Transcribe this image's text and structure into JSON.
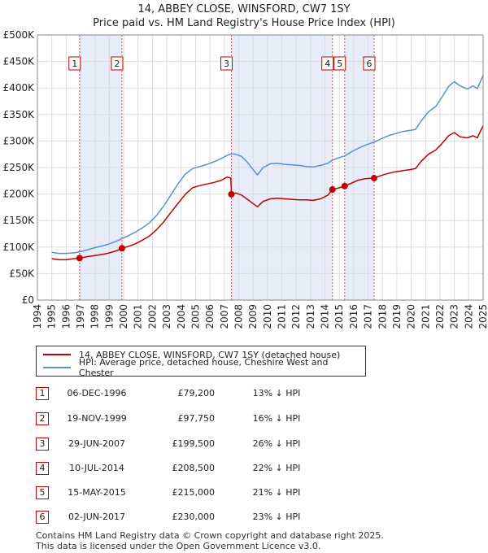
{
  "title_line1": "14, ABBEY CLOSE, WINSFORD, CW7 1SY",
  "title_line2": "Price paid vs. HM Land Registry's House Price Index (HPI)",
  "legend": {
    "property": "14, ABBEY CLOSE, WINSFORD, CW7 1SY (detached house)",
    "hpi": "HPI: Average price, detached house, Cheshire West and Chester"
  },
  "colors": {
    "property": "#c00000",
    "hpi": "#5b8fd0",
    "shade": "#e6ecf8",
    "grid": "#dddddd"
  },
  "sales": [
    {
      "n": "1",
      "date": "06-DEC-1996",
      "price": "£79,200",
      "hpi": "13% ↓ HPI"
    },
    {
      "n": "2",
      "date": "19-NOV-1999",
      "price": "£97,750",
      "hpi": "16% ↓ HPI"
    },
    {
      "n": "3",
      "date": "29-JUN-2007",
      "price": "£199,500",
      "hpi": "26% ↓ HPI"
    },
    {
      "n": "4",
      "date": "10-JUL-2014",
      "price": "£208,500",
      "hpi": "22% ↓ HPI"
    },
    {
      "n": "5",
      "date": "15-MAY-2015",
      "price": "£215,000",
      "hpi": "21% ↓ HPI"
    },
    {
      "n": "6",
      "date": "02-JUN-2017",
      "price": "£230,000",
      "hpi": "23% ↓ HPI"
    }
  ],
  "footer_line1": "Contains HM Land Registry data © Crown copyright and database right 2025.",
  "footer_line2": "This data is licensed under the Open Government Licence v3.0.",
  "chart_data": {
    "type": "line",
    "x_range": [
      1994,
      2025
    ],
    "y_range": [
      0,
      500000
    ],
    "y_ticks": [
      {
        "v": 0,
        "label": "£0"
      },
      {
        "v": 50000,
        "label": "£50K"
      },
      {
        "v": 100000,
        "label": "£100K"
      },
      {
        "v": 150000,
        "label": "£150K"
      },
      {
        "v": 200000,
        "label": "£200K"
      },
      {
        "v": 250000,
        "label": "£250K"
      },
      {
        "v": 300000,
        "label": "£300K"
      },
      {
        "v": 350000,
        "label": "£350K"
      },
      {
        "v": 400000,
        "label": "£400K"
      },
      {
        "v": 450000,
        "label": "£450K"
      },
      {
        "v": 500000,
        "label": "£500K"
      }
    ],
    "x_ticks": [
      "1994",
      "1995",
      "1996",
      "1997",
      "1998",
      "1999",
      "2000",
      "2001",
      "2002",
      "2003",
      "2004",
      "2005",
      "2006",
      "2007",
      "2008",
      "2009",
      "2010",
      "2011",
      "2012",
      "2013",
      "2014",
      "2015",
      "2016",
      "2017",
      "2018",
      "2019",
      "2020",
      "2021",
      "2022",
      "2023",
      "2024",
      "2025"
    ],
    "shaded_ranges": [
      [
        1996.93,
        1999.88
      ],
      [
        2007.49,
        2014.52
      ],
      [
        2015.37,
        2017.42
      ]
    ],
    "sale_points": [
      {
        "n": "1",
        "x": 1996.93,
        "y": 79200
      },
      {
        "n": "2",
        "x": 1999.88,
        "y": 97750
      },
      {
        "n": "3",
        "x": 2007.49,
        "y": 199500
      },
      {
        "n": "4",
        "x": 2014.52,
        "y": 208500
      },
      {
        "n": "5",
        "x": 2015.37,
        "y": 215000
      },
      {
        "n": "6",
        "x": 2017.42,
        "y": 230000
      }
    ],
    "series": [
      {
        "name": "14, ABBEY CLOSE, WINSFORD, CW7 1SY (detached house)",
        "points": [
          [
            1995.0,
            78000
          ],
          [
            1995.5,
            76000
          ],
          [
            1996.0,
            76000
          ],
          [
            1996.5,
            78000
          ],
          [
            1996.93,
            79200
          ],
          [
            1997.5,
            82000
          ],
          [
            1998.0,
            84000
          ],
          [
            1998.5,
            86000
          ],
          [
            1999.0,
            89000
          ],
          [
            1999.5,
            93000
          ],
          [
            1999.88,
            97750
          ],
          [
            2000.3,
            101000
          ],
          [
            2000.8,
            106000
          ],
          [
            2001.3,
            113000
          ],
          [
            2001.8,
            121000
          ],
          [
            2002.3,
            133000
          ],
          [
            2002.8,
            148000
          ],
          [
            2003.3,
            166000
          ],
          [
            2003.8,
            183000
          ],
          [
            2004.3,
            200000
          ],
          [
            2004.8,
            212000
          ],
          [
            2005.3,
            216000
          ],
          [
            2005.8,
            219000
          ],
          [
            2006.3,
            222000
          ],
          [
            2006.8,
            226000
          ],
          [
            2007.2,
            232000
          ],
          [
            2007.45,
            230000
          ],
          [
            2007.49,
            199500
          ],
          [
            2007.8,
            202000
          ],
          [
            2008.2,
            198000
          ],
          [
            2008.6,
            190000
          ],
          [
            2009.0,
            182000
          ],
          [
            2009.3,
            176000
          ],
          [
            2009.7,
            186000
          ],
          [
            2010.2,
            191000
          ],
          [
            2010.7,
            192000
          ],
          [
            2011.2,
            191000
          ],
          [
            2011.7,
            190000
          ],
          [
            2012.2,
            189000
          ],
          [
            2012.7,
            189000
          ],
          [
            2013.2,
            188000
          ],
          [
            2013.7,
            191000
          ],
          [
            2014.2,
            198000
          ],
          [
            2014.52,
            208500
          ],
          [
            2014.9,
            211000
          ],
          [
            2015.37,
            215000
          ],
          [
            2015.8,
            220000
          ],
          [
            2016.3,
            226000
          ],
          [
            2016.8,
            229000
          ],
          [
            2017.42,
            230000
          ],
          [
            2017.9,
            235000
          ],
          [
            2018.4,
            239000
          ],
          [
            2018.9,
            242000
          ],
          [
            2019.4,
            244000
          ],
          [
            2019.9,
            246000
          ],
          [
            2020.3,
            248000
          ],
          [
            2020.7,
            262000
          ],
          [
            2021.2,
            275000
          ],
          [
            2021.7,
            283000
          ],
          [
            2022.1,
            294000
          ],
          [
            2022.6,
            310000
          ],
          [
            2023.0,
            316000
          ],
          [
            2023.4,
            308000
          ],
          [
            2023.9,
            306000
          ],
          [
            2024.3,
            310000
          ],
          [
            2024.6,
            306000
          ],
          [
            2025.0,
            329000
          ]
        ]
      },
      {
        "name": "HPI: Average price, detached house, Cheshire West and Chester",
        "points": [
          [
            1995.0,
            90000
          ],
          [
            1995.5,
            88000
          ],
          [
            1996.0,
            88000
          ],
          [
            1996.5,
            89000
          ],
          [
            1996.93,
            91000
          ],
          [
            1997.5,
            95000
          ],
          [
            1998.0,
            99000
          ],
          [
            1998.5,
            102000
          ],
          [
            1999.0,
            106000
          ],
          [
            1999.5,
            111000
          ],
          [
            1999.88,
            116000
          ],
          [
            2000.3,
            121000
          ],
          [
            2000.8,
            128000
          ],
          [
            2001.3,
            136000
          ],
          [
            2001.8,
            146000
          ],
          [
            2002.3,
            160000
          ],
          [
            2002.8,
            178000
          ],
          [
            2003.3,
            199000
          ],
          [
            2003.8,
            220000
          ],
          [
            2004.3,
            238000
          ],
          [
            2004.8,
            248000
          ],
          [
            2005.3,
            252000
          ],
          [
            2005.8,
            256000
          ],
          [
            2006.3,
            261000
          ],
          [
            2006.8,
            267000
          ],
          [
            2007.2,
            273000
          ],
          [
            2007.49,
            276000
          ],
          [
            2007.8,
            275000
          ],
          [
            2008.2,
            271000
          ],
          [
            2008.6,
            260000
          ],
          [
            2009.0,
            246000
          ],
          [
            2009.3,
            236000
          ],
          [
            2009.7,
            250000
          ],
          [
            2010.2,
            257000
          ],
          [
            2010.7,
            258000
          ],
          [
            2011.2,
            256000
          ],
          [
            2011.7,
            255000
          ],
          [
            2012.2,
            254000
          ],
          [
            2012.7,
            252000
          ],
          [
            2013.2,
            251000
          ],
          [
            2013.7,
            254000
          ],
          [
            2014.2,
            258000
          ],
          [
            2014.52,
            264000
          ],
          [
            2014.9,
            268000
          ],
          [
            2015.37,
            272000
          ],
          [
            2015.8,
            279000
          ],
          [
            2016.3,
            286000
          ],
          [
            2016.8,
            292000
          ],
          [
            2017.42,
            298000
          ],
          [
            2017.9,
            304000
          ],
          [
            2018.4,
            310000
          ],
          [
            2018.9,
            314000
          ],
          [
            2019.4,
            318000
          ],
          [
            2019.9,
            320000
          ],
          [
            2020.3,
            322000
          ],
          [
            2020.7,
            338000
          ],
          [
            2021.2,
            355000
          ],
          [
            2021.7,
            365000
          ],
          [
            2022.1,
            381000
          ],
          [
            2022.6,
            403000
          ],
          [
            2023.0,
            412000
          ],
          [
            2023.4,
            404000
          ],
          [
            2023.9,
            398000
          ],
          [
            2024.3,
            404000
          ],
          [
            2024.6,
            399000
          ],
          [
            2025.0,
            424000
          ]
        ]
      }
    ]
  }
}
